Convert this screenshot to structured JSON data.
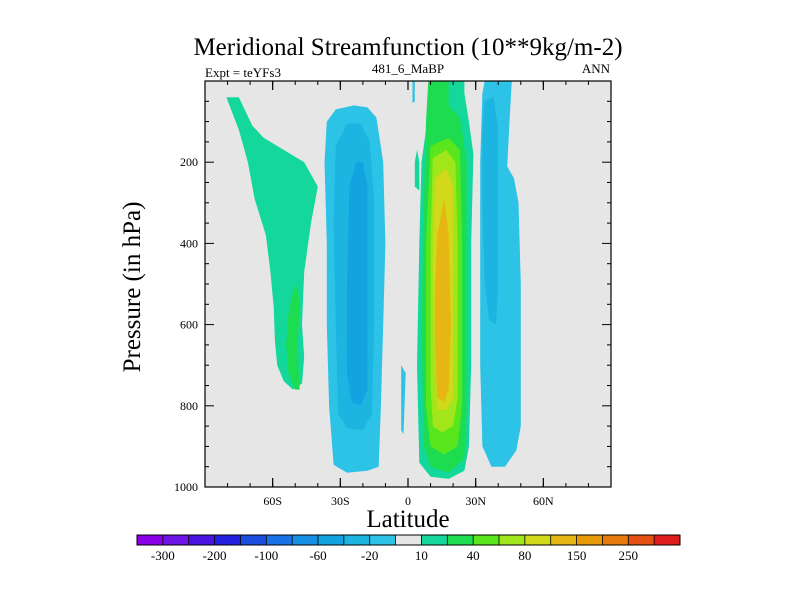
{
  "chart_data": {
    "type": "contour",
    "title": "Meridional Streamfunction (10**9kg/m-2)",
    "subtitle_left": "Expt = teYFs3",
    "subtitle_center": "481_6_MaBP",
    "subtitle_right": "ANN",
    "xlabel": "Latitude",
    "ylabel": "Pressure (in hPa)",
    "xlim": [
      -90,
      90
    ],
    "ylim": [
      1000,
      0
    ],
    "x_ticks": [
      {
        "value": -60,
        "label": "60S"
      },
      {
        "value": -30,
        "label": "30S"
      },
      {
        "value": 0,
        "label": "0"
      },
      {
        "value": 30,
        "label": "30N"
      },
      {
        "value": 60,
        "label": "60N"
      }
    ],
    "y_ticks": [
      {
        "value": 200,
        "label": "200"
      },
      {
        "value": 400,
        "label": "400"
      },
      {
        "value": 600,
        "label": "600"
      },
      {
        "value": 800,
        "label": "800"
      },
      {
        "value": 1000,
        "label": "1000"
      }
    ],
    "background_color": "#e6e6e6",
    "colorbar": {
      "levels": [
        -350,
        -300,
        -250,
        -200,
        -150,
        -100,
        -80,
        -60,
        -40,
        -20,
        -10,
        10,
        20,
        40,
        60,
        80,
        100,
        150,
        200,
        250,
        300
      ],
      "labels": [
        "-300",
        "-200",
        "-100",
        "-60",
        "-20",
        "10",
        "40",
        "80",
        "150",
        "250"
      ],
      "label_levels": [
        -300,
        -200,
        -100,
        -60,
        -20,
        10,
        40,
        80,
        150,
        250
      ],
      "colors": [
        "#8a00e6",
        "#6e14e6",
        "#4a14e0",
        "#2420e0",
        "#1c4de0",
        "#1a73e6",
        "#1690e6",
        "#12a3e0",
        "#1cb4e0",
        "#2cc3e6",
        "#e6e6e6",
        "#14d79b",
        "#1edc50",
        "#5ae61c",
        "#a0e61a",
        "#d2d81a",
        "#e6b614",
        "#e69a0a",
        "#e67a0a",
        "#e65014",
        "#e01c1c"
      ]
    },
    "contours": [
      {
        "name": "sh-polar-positive",
        "value": 10,
        "color": "#14d79b",
        "polygon": [
          [
            -80.5,
            40
          ],
          [
            -75,
            120
          ],
          [
            -71,
            200
          ],
          [
            -68,
            290
          ],
          [
            -63,
            380
          ],
          [
            -61,
            470
          ],
          [
            -59.5,
            560
          ],
          [
            -59,
            640
          ],
          [
            -58,
            700
          ],
          [
            -55,
            740
          ],
          [
            -51,
            760
          ],
          [
            -47,
            745
          ],
          [
            -46,
            680
          ],
          [
            -47,
            600
          ],
          [
            -46,
            470
          ],
          [
            -43,
            350
          ],
          [
            -40,
            260
          ],
          [
            -46,
            200
          ],
          [
            -55,
            170
          ],
          [
            -64,
            140
          ],
          [
            -69,
            110
          ],
          [
            -75,
            40
          ]
        ]
      },
      {
        "name": "sh-polar-inner",
        "value": 20,
        "color": "#1edc50",
        "polygon": [
          [
            -53,
            570
          ],
          [
            -51,
            520
          ],
          [
            -49,
            500
          ],
          [
            -48,
            560
          ],
          [
            -49,
            650
          ],
          [
            -48,
            760
          ],
          [
            -50,
            760
          ],
          [
            -53,
            720
          ],
          [
            -54,
            650
          ]
        ]
      },
      {
        "name": "sh-hadley-outer",
        "value": -10,
        "color": "#2cc3e6",
        "polygon": [
          [
            -36,
            100
          ],
          [
            -32,
            70
          ],
          [
            -24,
            60
          ],
          [
            -18,
            65
          ],
          [
            -14,
            90
          ],
          [
            -11,
            200
          ],
          [
            -10,
            400
          ],
          [
            -11,
            600
          ],
          [
            -12,
            800
          ],
          [
            -13,
            950
          ],
          [
            -18,
            960
          ],
          [
            -27,
            965
          ],
          [
            -33,
            945
          ],
          [
            -35,
            800
          ],
          [
            -36,
            600
          ],
          [
            -36,
            400
          ],
          [
            -37,
            200
          ]
        ]
      },
      {
        "name": "sh-hadley-mid",
        "value": -20,
        "color": "#1cb4e0",
        "polygon": [
          [
            -32,
            160
          ],
          [
            -27,
            105
          ],
          [
            -21,
            105
          ],
          [
            -17,
            150
          ],
          [
            -15,
            300
          ],
          [
            -15,
            600
          ],
          [
            -16,
            820
          ],
          [
            -20,
            860
          ],
          [
            -27,
            855
          ],
          [
            -31,
            820
          ],
          [
            -32,
            600
          ],
          [
            -33,
            350
          ]
        ]
      },
      {
        "name": "sh-hadley-core",
        "value": -40,
        "color": "#12a3e0",
        "polygon": [
          [
            -26,
            260
          ],
          [
            -23,
            200
          ],
          [
            -20,
            200
          ],
          [
            -18,
            260
          ],
          [
            -18,
            500
          ],
          [
            -18,
            760
          ],
          [
            -21,
            800
          ],
          [
            -25,
            790
          ],
          [
            -27,
            720
          ],
          [
            -27,
            500
          ]
        ]
      },
      {
        "name": "nh-hadley-outer",
        "value": 10,
        "color": "#14d79b",
        "polygon": [
          [
            9,
            20
          ],
          [
            11,
            0
          ],
          [
            25,
            0
          ],
          [
            25,
            30
          ],
          [
            27,
            100
          ],
          [
            29,
            180
          ],
          [
            28,
            400
          ],
          [
            28,
            700
          ],
          [
            27,
            900
          ],
          [
            25,
            960
          ],
          [
            18,
            980
          ],
          [
            10,
            975
          ],
          [
            5,
            940
          ],
          [
            4,
            700
          ],
          [
            5,
            400
          ],
          [
            6,
            200
          ],
          [
            8,
            120
          ]
        ]
      },
      {
        "name": "nh-hadley-20",
        "value": 20,
        "color": "#1edc50",
        "polygon": [
          [
            9,
            0
          ],
          [
            18,
            0
          ],
          [
            18,
            60
          ],
          [
            23,
            90
          ],
          [
            26,
            200
          ],
          [
            26,
            500
          ],
          [
            26,
            800
          ],
          [
            25,
            930
          ],
          [
            18,
            965
          ],
          [
            10,
            950
          ],
          [
            7,
            900
          ],
          [
            6,
            600
          ],
          [
            7,
            300
          ],
          [
            8,
            100
          ]
        ]
      },
      {
        "name": "nh-hadley-40",
        "value": 40,
        "color": "#5ae61c",
        "polygon": [
          [
            10,
            160
          ],
          [
            18,
            140
          ],
          [
            23,
            170
          ],
          [
            24,
            400
          ],
          [
            24,
            800
          ],
          [
            22,
            900
          ],
          [
            16,
            920
          ],
          [
            10,
            900
          ],
          [
            8,
            800
          ],
          [
            8,
            400
          ]
        ]
      },
      {
        "name": "nh-hadley-60",
        "value": 60,
        "color": "#a0e61a",
        "polygon": [
          [
            11,
            190
          ],
          [
            17,
            170
          ],
          [
            21,
            200
          ],
          [
            22,
            400
          ],
          [
            22,
            780
          ],
          [
            20,
            850
          ],
          [
            15,
            865
          ],
          [
            11,
            850
          ],
          [
            10,
            750
          ],
          [
            10,
            400
          ]
        ]
      },
      {
        "name": "nh-hadley-80",
        "value": 80,
        "color": "#d2d81a",
        "polygon": [
          [
            12,
            240
          ],
          [
            17,
            215
          ],
          [
            20,
            260
          ],
          [
            20,
            500
          ],
          [
            20,
            780
          ],
          [
            17,
            810
          ],
          [
            13,
            810
          ],
          [
            12,
            700
          ],
          [
            11,
            450
          ]
        ]
      },
      {
        "name": "nh-hadley-100",
        "value": 100,
        "color": "#e6b614",
        "polygon": [
          [
            13,
            380
          ],
          [
            16,
            290
          ],
          [
            18,
            380
          ],
          [
            19,
            600
          ],
          [
            18,
            760
          ],
          [
            16,
            790
          ],
          [
            13,
            780
          ],
          [
            12,
            650
          ],
          [
            12,
            500
          ]
        ]
      },
      {
        "name": "nh-ferrel-outer",
        "value": -10,
        "color": "#2cc3e6",
        "polygon": [
          [
            33,
            30
          ],
          [
            34,
            0
          ],
          [
            46,
            0
          ],
          [
            45,
            100
          ],
          [
            44,
            210
          ],
          [
            47,
            240
          ],
          [
            49,
            300
          ],
          [
            50,
            500
          ],
          [
            50,
            700
          ],
          [
            50,
            850
          ],
          [
            48,
            910
          ],
          [
            43,
            950
          ],
          [
            37,
            950
          ],
          [
            33,
            900
          ],
          [
            32,
            700
          ],
          [
            32,
            450
          ],
          [
            32,
            200
          ]
        ]
      },
      {
        "name": "nh-ferrel-inner",
        "value": -20,
        "color": "#1cb4e0",
        "polygon": [
          [
            34,
            50
          ],
          [
            38,
            40
          ],
          [
            40,
            120
          ],
          [
            40,
            300
          ],
          [
            40,
            500
          ],
          [
            39,
            600
          ],
          [
            36,
            590
          ],
          [
            34,
            500
          ],
          [
            33,
            300
          ],
          [
            33,
            120
          ]
        ]
      },
      {
        "name": "tropical-spike-1",
        "value": -10,
        "color": "#2cc3e6",
        "polygon": [
          [
            2,
            0
          ],
          [
            3,
            0
          ],
          [
            3,
            50
          ],
          [
            2,
            55
          ]
        ]
      },
      {
        "name": "tropical-spike-2",
        "value": 10,
        "color": "#14d79b",
        "polygon": [
          [
            3,
            200
          ],
          [
            4,
            170
          ],
          [
            5,
            200
          ],
          [
            5,
            270
          ],
          [
            3,
            260
          ]
        ]
      },
      {
        "name": "tropical-sliver",
        "value": -10,
        "color": "#2cc3e6",
        "polygon": [
          [
            -3,
            700
          ],
          [
            -1,
            720
          ],
          [
            -2,
            870
          ],
          [
            -3,
            860
          ]
        ]
      }
    ]
  }
}
